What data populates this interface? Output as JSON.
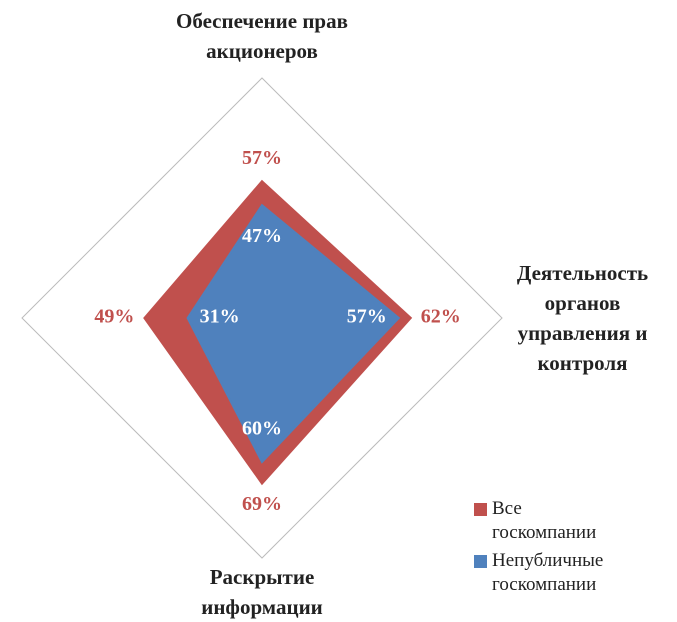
{
  "chart_data": {
    "type": "radar",
    "categories": [
      "Обеспечение прав акционеров",
      "Деятельность органов управления и контроля",
      "Раскрытие информации",
      null
    ],
    "series": [
      {
        "name": "Все госкомпании",
        "color": "#c0504d",
        "values": [
          57,
          62,
          69,
          49
        ],
        "value_labels": [
          "57%",
          "62%",
          "69%",
          "49%"
        ]
      },
      {
        "name": "Непубличные госкомпании",
        "color": "#4f81bd",
        "values": [
          47,
          57,
          60,
          31
        ],
        "value_labels": [
          "47%",
          "57%",
          "60%",
          "31%"
        ]
      }
    ],
    "ylim": [
      0,
      100
    ],
    "legend": "bottom-right"
  }
}
